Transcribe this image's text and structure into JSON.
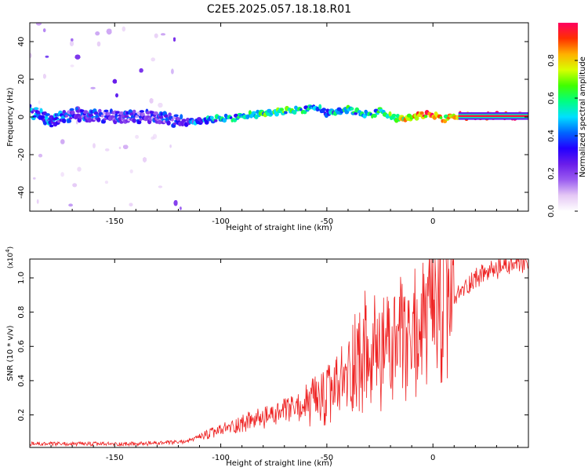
{
  "title": "C2E5.2025.057.18.18.R01",
  "chart_data": [
    {
      "type": "heatmap",
      "xlabel": "Height of straight line (km)",
      "ylabel": "Frequency (Hz)",
      "xlim": [
        -190,
        45
      ],
      "ylim": [
        -50,
        50
      ],
      "xticks": [
        -150,
        -100,
        -50,
        0
      ],
      "yticks": [
        -40,
        -20,
        0,
        20,
        40
      ],
      "colorbar": {
        "label": "Normalized spectral amplitude",
        "range": [
          0.0,
          1.0
        ],
        "ticks": [
          0.0,
          0.2,
          0.4,
          0.6,
          0.8
        ],
        "colors": [
          "#ffffff",
          "#e5c8f5",
          "#9a5cf0",
          "#6a1dea",
          "#2200ff",
          "#0066ff",
          "#00e0ff",
          "#00ff80",
          "#40ff00",
          "#d8ff00",
          "#ffb000",
          "#ff3000",
          "#ff0060"
        ]
      },
      "ridge": {
        "x": [
          -190,
          -180,
          -170,
          -150,
          -130,
          -118,
          -110,
          -100,
          -90,
          -80,
          -70,
          -60,
          -55,
          -50,
          -45,
          -40,
          -35,
          -30,
          -25,
          -20,
          -15,
          -10,
          -5,
          0,
          5,
          10,
          15,
          20,
          30,
          40,
          43
        ],
        "y": [
          3,
          -2,
          1,
          0,
          0,
          -3,
          -2,
          -1,
          0,
          2,
          3,
          4,
          5,
          2,
          3,
          4,
          2,
          1,
          3,
          0,
          -1,
          0,
          1,
          1,
          -1,
          0,
          0.5,
          0.5,
          0.5,
          0.5,
          0.5
        ],
        "amplitude": [
          0.4,
          0.35,
          0.3,
          0.25,
          0.25,
          0.3,
          0.35,
          0.45,
          0.5,
          0.55,
          0.55,
          0.5,
          0.45,
          0.4,
          0.45,
          0.5,
          0.45,
          0.5,
          0.55,
          0.6,
          0.7,
          0.75,
          0.8,
          0.85,
          0.75,
          0.8,
          0.9,
          0.95,
          0.95,
          0.95,
          0.95
        ]
      }
    },
    {
      "type": "line",
      "xlabel": "Height of straight line (km)",
      "ylabel": "SNR (10 * v/v)",
      "multiplier": "(x10^4)",
      "xlim": [
        -190,
        45
      ],
      "ylim": [
        0.01,
        1.11
      ],
      "xticks": [
        -150,
        -100,
        -50,
        0
      ],
      "yticks": [
        0.2,
        0.4,
        0.6,
        0.8,
        1.0
      ],
      "series": [
        {
          "color": "#ee2222",
          "x": [
            -190,
            -180,
            -170,
            -160,
            -150,
            -140,
            -130,
            -120,
            -115,
            -110,
            -105,
            -100,
            -95,
            -90,
            -85,
            -80,
            -75,
            -70,
            -65,
            -60,
            -55,
            -50,
            -45,
            -40,
            -38,
            -36,
            -34,
            -32,
            -30,
            -28,
            -26,
            -24,
            -22,
            -20,
            -18,
            -16,
            -14,
            -12,
            -10,
            -8,
            -6,
            -4,
            -2,
            0,
            2,
            4,
            6,
            8,
            10,
            12,
            14,
            16,
            18,
            20,
            25,
            30,
            35,
            40,
            45
          ],
          "values": [
            0.03,
            0.03,
            0.03,
            0.03,
            0.03,
            0.03,
            0.035,
            0.04,
            0.05,
            0.07,
            0.09,
            0.11,
            0.13,
            0.15,
            0.17,
            0.18,
            0.2,
            0.22,
            0.24,
            0.25,
            0.27,
            0.3,
            0.36,
            0.42,
            0.5,
            0.55,
            0.5,
            0.58,
            0.45,
            0.55,
            0.6,
            0.5,
            0.65,
            0.55,
            0.6,
            0.65,
            0.6,
            0.55,
            0.62,
            0.7,
            0.68,
            0.75,
            0.72,
            0.78,
            0.8,
            0.82,
            0.85,
            0.86,
            0.88,
            0.9,
            0.93,
            0.95,
            0.98,
            1.0,
            1.03,
            1.05,
            1.07,
            1.08,
            1.08
          ]
        }
      ]
    }
  ]
}
